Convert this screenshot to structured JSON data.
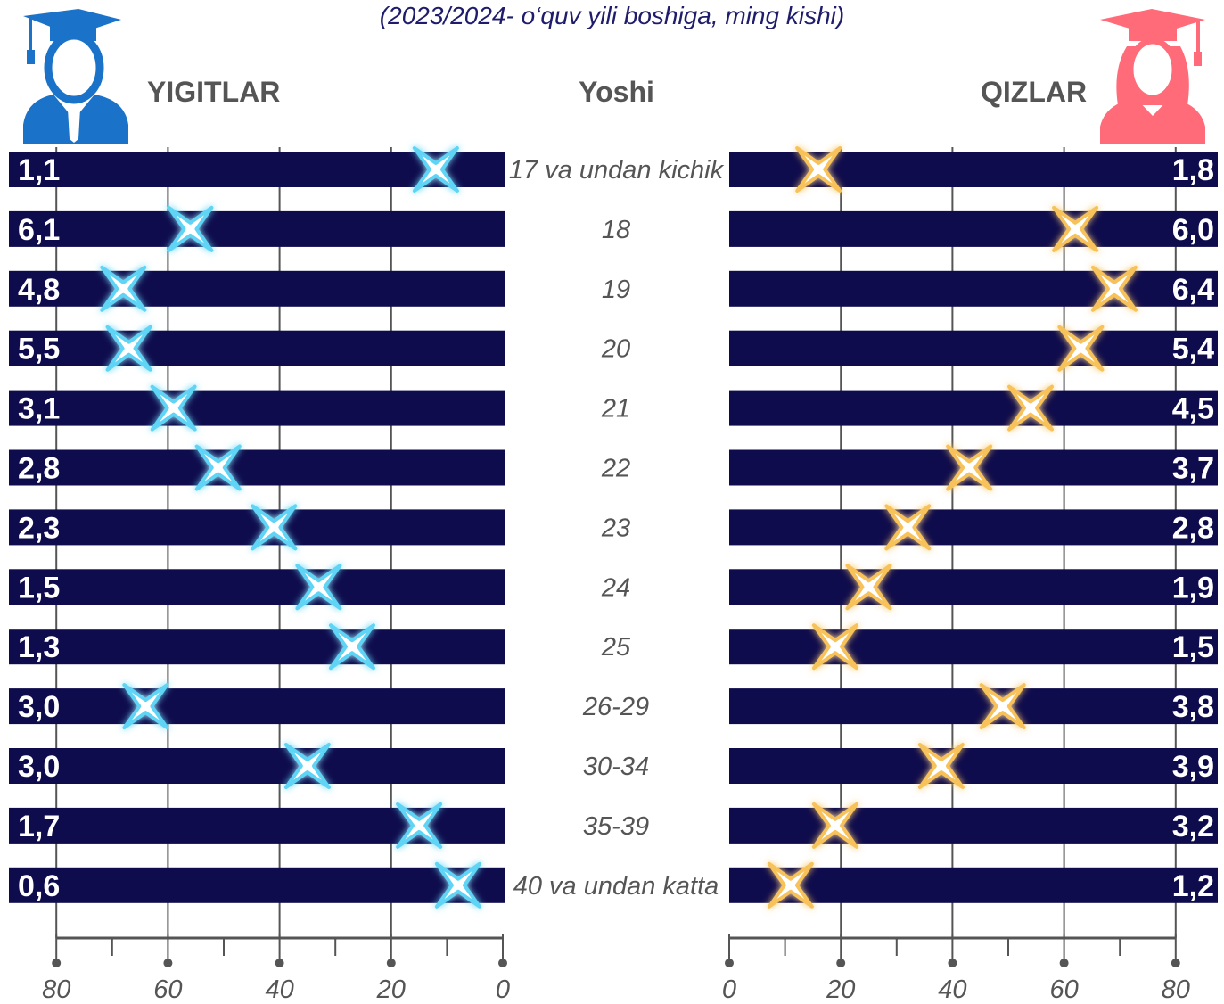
{
  "subtitle": "(2023/2024- o‘quv yili boshiga, ming kishi)",
  "headers": {
    "left": "YIGITLAR",
    "center": "Yoshi",
    "right": "QIZLAR"
  },
  "icons": {
    "left": "male-graduate-icon",
    "right": "female-graduate-icon"
  },
  "colors": {
    "bar": "#0f0c4d",
    "male_accent": "#1a73c8",
    "male_marker": "#5fd4f5",
    "female_accent": "#ff6b78",
    "female_marker": "#f7c25a",
    "axis": "#555555",
    "label": "#555555"
  },
  "chart_data": {
    "type": "bar",
    "categories": [
      "17 va undan kichik",
      "18",
      "19",
      "20",
      "21",
      "22",
      "23",
      "24",
      "25",
      "26-29",
      "30-34",
      "35-39",
      "40 va undan katta"
    ],
    "series": [
      {
        "name": "YIGITLAR",
        "values": [
          "1,1",
          "6,1",
          "4,8",
          "5,5",
          "3,1",
          "2,8",
          "2,3",
          "1,5",
          "1,3",
          "3,0",
          "3,0",
          "1,7",
          "0,6"
        ],
        "markers": [
          12,
          56,
          68,
          67,
          59,
          51,
          41,
          33,
          27,
          64,
          35,
          15,
          8
        ]
      },
      {
        "name": "QIZLAR",
        "values": [
          "1,8",
          "6,0",
          "6,4",
          "5,4",
          "4,5",
          "3,7",
          "2,8",
          "1,9",
          "1,5",
          "3,8",
          "3,9",
          "3,2",
          "1,2"
        ],
        "markers": [
          16,
          62,
          69,
          63,
          54,
          43,
          32,
          25,
          19,
          49,
          38,
          19,
          11
        ]
      }
    ],
    "x_ticks": [
      0,
      20,
      40,
      60,
      80
    ],
    "xlim": [
      0,
      80
    ],
    "tick_labels": [
      "80",
      "60",
      "40",
      "20",
      "0",
      "0",
      "20",
      "40",
      "60",
      "80"
    ]
  }
}
